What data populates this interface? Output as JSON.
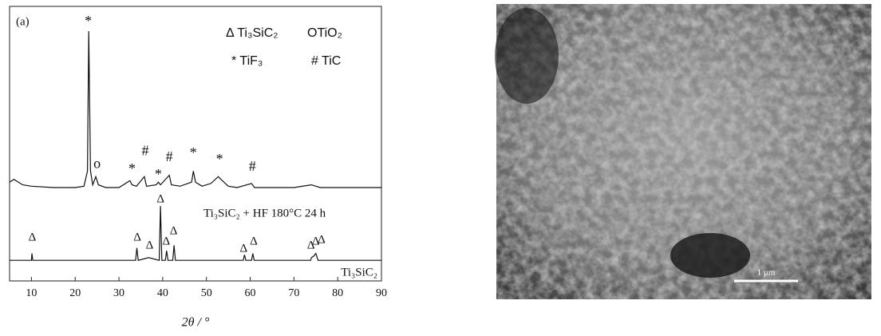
{
  "chart_data": {
    "type": "line",
    "panel_label": "(a)",
    "x_label": "2θ / °",
    "xlim": [
      5,
      90
    ],
    "xticks": [
      10,
      20,
      30,
      40,
      50,
      60,
      70,
      80,
      90
    ],
    "ylim": [
      0,
      100
    ],
    "series": [
      {
        "name": "Ti₃SiC₂ + HF 180°C 24 h",
        "color": "#111111",
        "x": [
          5,
          6,
          7,
          8,
          10,
          15,
          20,
          22,
          22.8,
          23.1,
          23.5,
          24,
          24.7,
          25.3,
          27,
          30,
          32.5,
          33,
          34,
          35.8,
          36.3,
          38.5,
          39,
          39.5,
          41.5,
          42,
          44,
          46.6,
          47,
          47.5,
          49,
          51,
          52.7,
          53.3,
          55,
          57,
          60.3,
          61,
          65,
          70,
          74,
          76,
          80,
          85,
          90
        ],
        "values": [
          36,
          37,
          36,
          35,
          34.5,
          34,
          34,
          34.5,
          40,
          91,
          40,
          35,
          38,
          35,
          34,
          34,
          36.5,
          35,
          34.5,
          38,
          34.5,
          35,
          36,
          35,
          38.5,
          35,
          34.5,
          36,
          40,
          36,
          34.5,
          35.5,
          38,
          37,
          34.5,
          34,
          35.5,
          34,
          34,
          34,
          35,
          34,
          34,
          34,
          34
        ]
      },
      {
        "name": "Ti₃SiC₂",
        "color": "#111111",
        "x": [
          5,
          10,
          10.1,
          10.3,
          33.8,
          34.1,
          34.4,
          36.8,
          39.2,
          39.5,
          39.8,
          40.6,
          40.9,
          41.2,
          42.3,
          42.6,
          42.9,
          58.4,
          58.7,
          59,
          60.3,
          60.6,
          60.9,
          73.8,
          74,
          74.5,
          75,
          75.5,
          90
        ],
        "values": [
          7.5,
          7.5,
          10,
          7.5,
          7.5,
          12,
          7.5,
          8.5,
          7.5,
          27.3,
          7.5,
          7.5,
          11,
          7.5,
          7.5,
          13,
          7.5,
          7.5,
          9.5,
          7.5,
          7.5,
          10,
          7.5,
          7.5,
          8.5,
          9,
          10,
          7.5,
          7.5
        ]
      }
    ],
    "legend_text": [
      "Δ Ti₃SiC₂",
      "ΟTiO₂",
      "* TiF₃",
      "# TiC"
    ],
    "annotations": [
      {
        "text": "*",
        "x": 23,
        "y": 94.2
      },
      {
        "text": "ο",
        "x": 25,
        "y": 42.4
      },
      {
        "text": "*",
        "x": 33,
        "y": 40.4
      },
      {
        "text": "#",
        "x": 36,
        "y": 47
      },
      {
        "text": "*",
        "x": 39,
        "y": 38.4
      },
      {
        "text": "#",
        "x": 41.5,
        "y": 44.8
      },
      {
        "text": "*",
        "x": 47,
        "y": 46.2
      },
      {
        "text": "*",
        "x": 53,
        "y": 43.9
      },
      {
        "text": "#",
        "x": 60.5,
        "y": 41.3
      },
      {
        "text": "Δ",
        "x": 10.2,
        "y": 15.7
      },
      {
        "text": "Δ",
        "x": 34.2,
        "y": 15.7
      },
      {
        "text": "Δ",
        "x": 37,
        "y": 12.8
      },
      {
        "text": "Δ",
        "x": 39.5,
        "y": 29.7
      },
      {
        "text": "Δ",
        "x": 40.8,
        "y": 14.2
      },
      {
        "text": "Δ",
        "x": 42.5,
        "y": 18
      },
      {
        "text": "Δ",
        "x": 58.5,
        "y": 11.6
      },
      {
        "text": "Δ",
        "x": 60.8,
        "y": 14.2
      },
      {
        "text": "Δ",
        "x": 73.9,
        "y": 12.8
      },
      {
        "text": "Δ",
        "x": 75,
        "y": 14.2
      },
      {
        "text": "Δ",
        "x": 76.3,
        "y": 14.8
      }
    ]
  },
  "image": {
    "scale_bar": "1 μm"
  }
}
